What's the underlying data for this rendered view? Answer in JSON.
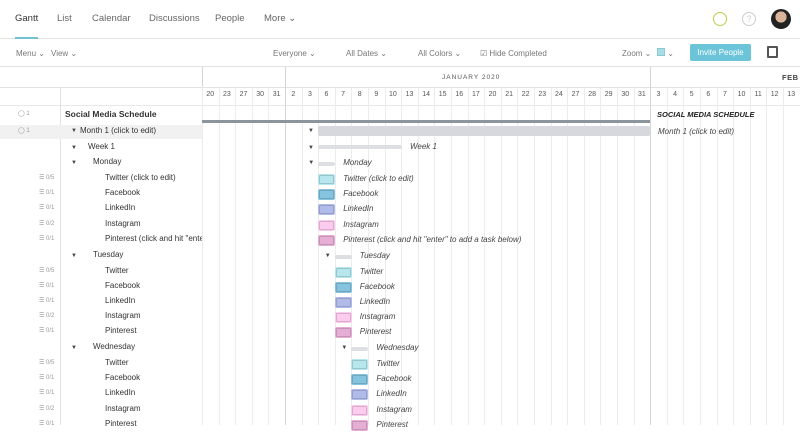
{
  "nav": {
    "tabs": [
      "Gantt",
      "List",
      "Calendar",
      "Discussions",
      "People",
      "More"
    ],
    "active": "Gantt",
    "icons": [
      "clock-icon",
      "help-icon",
      "avatar"
    ]
  },
  "toolbar": {
    "menu": "Menu",
    "view": "View",
    "everyone": "Everyone",
    "all_dates": "All Dates",
    "all_colors": "All Colors",
    "hide_completed": "Hide Completed",
    "hide_completed_checked": true,
    "zoom": "Zoom",
    "invite": "Invite People",
    "color_swatch": "#a8dce8"
  },
  "timeline": {
    "months": [
      {
        "label": "JANUARY 2020"
      },
      {
        "label": "FEB"
      }
    ],
    "days": [
      "20",
      "23",
      "27",
      "30",
      "31",
      "2",
      "3",
      "6",
      "7",
      "8",
      "9",
      "10",
      "13",
      "14",
      "15",
      "16",
      "17",
      "20",
      "21",
      "22",
      "23",
      "24",
      "27",
      "28",
      "29",
      "30",
      "31",
      "3",
      "4",
      "5",
      "6",
      "7",
      "10",
      "11",
      "12",
      "13"
    ]
  },
  "project": {
    "comments": "1",
    "name": "Social Media Schedule",
    "gantt_label": "SOCIAL MEDIA SCHEDULE"
  },
  "month": {
    "comments": "1",
    "name": "Month 1 (click to edit)",
    "gantt_label": "Month 1 (click to edit)"
  },
  "week": {
    "name": "Week 1",
    "gantt_label": "Week 1"
  },
  "colors": {
    "Twitter": "#b6e6ee",
    "Facebook": "#86c3de",
    "LinkedIn": "#b0bbea",
    "Instagram": "#fdcbee",
    "Pinterest": "#e6aed4"
  },
  "days": [
    {
      "name": "Monday",
      "tasks": [
        {
          "name": "Twitter (click to edit)",
          "gantt": "Twitter (click to edit)",
          "count": "0/5",
          "color": "Twitter"
        },
        {
          "name": "Facebook",
          "gantt": "Facebook",
          "count": "0/1",
          "color": "Facebook"
        },
        {
          "name": "LinkedIn",
          "gantt": "LinkedIn",
          "count": "0/1",
          "color": "LinkedIn"
        },
        {
          "name": "Instagram",
          "gantt": "Instagram",
          "count": "0/2",
          "color": "Instagram"
        },
        {
          "name": "Pinterest (click and hit \"enter\".",
          "gantt": "Pinterest (click and hit \"enter\" to add a task below)",
          "count": "0/1",
          "color": "Pinterest"
        }
      ]
    },
    {
      "name": "Tuesday",
      "tasks": [
        {
          "name": "Twitter",
          "gantt": "Twitter",
          "count": "0/5",
          "color": "Twitter"
        },
        {
          "name": "Facebook",
          "gantt": "Facebook",
          "count": "0/1",
          "color": "Facebook"
        },
        {
          "name": "LinkedIn",
          "gantt": "LinkedIn",
          "count": "0/1",
          "color": "LinkedIn"
        },
        {
          "name": "Instagram",
          "gantt": "Instagram",
          "count": "0/2",
          "color": "Instagram"
        },
        {
          "name": "Pinterest",
          "gantt": "Pinterest",
          "count": "0/1",
          "color": "Pinterest"
        }
      ]
    },
    {
      "name": "Wednesday",
      "tasks": [
        {
          "name": "Twitter",
          "gantt": "Twitter",
          "count": "0/5",
          "color": "Twitter"
        },
        {
          "name": "Facebook",
          "gantt": "Facebook",
          "count": "0/1",
          "color": "Facebook"
        },
        {
          "name": "LinkedIn",
          "gantt": "LinkedIn",
          "count": "0/1",
          "color": "LinkedIn"
        },
        {
          "name": "Instagram",
          "gantt": "Instagram",
          "count": "0/2",
          "color": "Instagram"
        },
        {
          "name": "Pinterest",
          "gantt": "Pinterest",
          "count": "0/1",
          "color": "Pinterest"
        }
      ]
    }
  ]
}
